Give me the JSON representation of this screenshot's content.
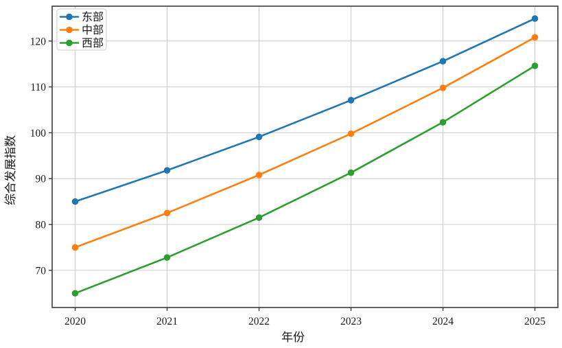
{
  "chart_data": {
    "type": "line",
    "xlabel": "年份",
    "ylabel": "综合发展指数",
    "x": [
      2020,
      2021,
      2022,
      2023,
      2024,
      2025
    ],
    "series": [
      {
        "name": "东部",
        "color": "#1f77b4",
        "values": [
          85.0,
          91.8,
          99.1,
          107.1,
          115.6,
          124.9
        ]
      },
      {
        "name": "中部",
        "color": "#ff7f0e",
        "values": [
          75.0,
          82.5,
          90.8,
          99.8,
          109.8,
          120.8
        ]
      },
      {
        "name": "西部",
        "color": "#2ca02c",
        "values": [
          65.0,
          72.8,
          81.5,
          91.3,
          102.3,
          114.6
        ]
      }
    ],
    "xticks": [
      "2020",
      "2021",
      "2022",
      "2023",
      "2024",
      "2025"
    ],
    "yticks": [
      70,
      80,
      90,
      100,
      110,
      120
    ],
    "xlim": [
      2019.75,
      2025.25
    ],
    "ylim": [
      61.9,
      127.6
    ],
    "grid": true,
    "legend_position": "upper left",
    "colors": {
      "grid": "#cccccc",
      "spine": "#3a3a3a",
      "text": "#1a1a1a",
      "legend_border": "#cccccc",
      "legend_background": "#ffffff"
    }
  }
}
